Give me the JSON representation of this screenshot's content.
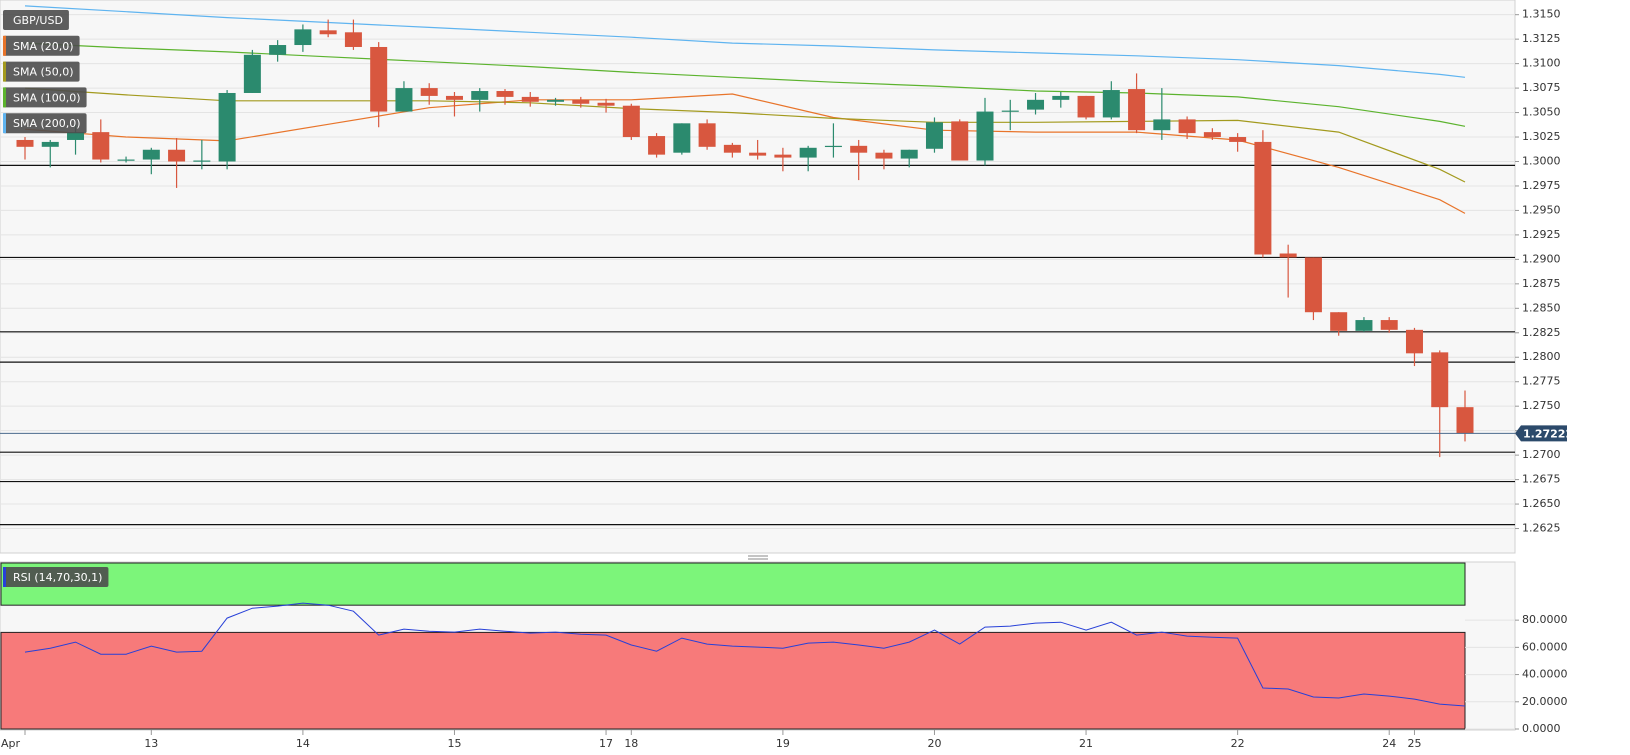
{
  "chart_data": [
    {
      "type": "candlestick",
      "title": "GBP/USD",
      "categories": [
        "Apr",
        null,
        null,
        null,
        null,
        "13",
        null,
        null,
        null,
        null,
        null,
        "14",
        null,
        null,
        null,
        null,
        null,
        "15",
        null,
        null,
        null,
        null,
        null,
        "17",
        "18",
        null,
        null,
        null,
        null,
        null,
        "19",
        null,
        null,
        null,
        null,
        null,
        "20",
        null,
        null,
        null,
        null,
        null,
        "21",
        null,
        null,
        null,
        null,
        null,
        "22",
        null,
        null,
        null,
        null,
        null,
        "24",
        "25",
        null,
        null
      ],
      "open": [
        1.3022,
        1.3015,
        1.3022,
        1.303,
        1.3002,
        1.3002,
        1.3012,
        1.3,
        1.3,
        1.307,
        1.3109,
        1.3119,
        1.3134,
        1.3132,
        1.3117,
        1.3051,
        1.3075,
        1.3067,
        1.3063,
        1.3072,
        1.3066,
        1.3061,
        1.3063,
        1.306,
        1.3057,
        1.3026,
        1.3009,
        1.3039,
        1.3017,
        1.3009,
        1.3007,
        1.3004,
        1.3015,
        1.3016,
        1.3009,
        1.3003,
        1.3013,
        1.3041,
        1.3001,
        1.3051,
        1.3053,
        1.3063,
        1.3067,
        1.3045,
        1.3074,
        1.3032,
        1.3043,
        1.303,
        1.3025,
        1.302,
        1.2906,
        1.2902,
        1.2846,
        1.2827,
        1.2838,
        1.2828,
        1.2805,
        1.2749
      ],
      "high": [
        1.3025,
        1.3022,
        1.3038,
        1.3043,
        1.3005,
        1.3014,
        1.3024,
        1.3022,
        1.3073,
        1.3114,
        1.3124,
        1.314,
        1.3145,
        1.3145,
        1.3122,
        1.3082,
        1.308,
        1.3071,
        1.3075,
        1.3074,
        1.3071,
        1.3065,
        1.3066,
        1.3064,
        1.3059,
        1.3029,
        1.3039,
        1.3043,
        1.3019,
        1.3022,
        1.3014,
        1.3016,
        1.3039,
        1.3022,
        1.3012,
        1.3012,
        1.3045,
        1.3043,
        1.3065,
        1.3063,
        1.307,
        1.3071,
        1.3067,
        1.3082,
        1.309,
        1.3075,
        1.3046,
        1.3034,
        1.3029,
        1.3032,
        1.2915,
        1.2902,
        1.2846,
        1.2841,
        1.2841,
        1.283,
        1.2807,
        1.2766
      ],
      "low": [
        1.3002,
        1.2994,
        1.3007,
        1.2999,
        1.2999,
        1.2987,
        1.2973,
        1.2992,
        1.2992,
        1.307,
        1.3102,
        1.3112,
        1.3127,
        1.3114,
        1.3035,
        1.3051,
        1.3058,
        1.3046,
        1.3051,
        1.3058,
        1.3056,
        1.3057,
        1.3055,
        1.305,
        1.3022,
        1.3004,
        1.3007,
        1.3012,
        1.3004,
        1.3002,
        1.299,
        1.299,
        1.3004,
        1.2981,
        1.2992,
        1.2994,
        1.3009,
        1.3001,
        1.2996,
        1.3032,
        1.3048,
        1.3055,
        1.3043,
        1.3043,
        1.3029,
        1.3022,
        1.3023,
        1.3022,
        1.301,
        1.2902,
        1.2861,
        1.2838,
        1.2822,
        1.2826,
        1.2825,
        1.2791,
        1.2698,
        1.2714
      ],
      "close": [
        1.3015,
        1.302,
        1.303,
        1.3002,
        1.3002,
        1.3012,
        1.3,
        1.3001,
        1.307,
        1.3109,
        1.3119,
        1.3135,
        1.313,
        1.3117,
        1.3051,
        1.3075,
        1.3067,
        1.3063,
        1.3072,
        1.3066,
        1.3061,
        1.3063,
        1.3059,
        1.3057,
        1.3025,
        1.3007,
        1.3039,
        1.3015,
        1.3009,
        1.3006,
        1.3004,
        1.3014,
        1.3016,
        1.3009,
        1.3003,
        1.3012,
        1.304,
        1.3001,
        1.3051,
        1.3052,
        1.3063,
        1.3067,
        1.3045,
        1.3073,
        1.3032,
        1.3043,
        1.3029,
        1.3025,
        1.302,
        1.2905,
        1.2902,
        1.2846,
        1.2827,
        1.2838,
        1.2828,
        1.2804,
        1.2749,
        1.2722
      ],
      "up_color": "#2b8a6e",
      "down_color": "#d8573f",
      "ylim": [
        1.26,
        1.3165
      ],
      "yticks": [
        1.2625,
        {
          "value": 1.265,
          "label": "1.2650"
        },
        1.2675,
        {
          "value": 1.27,
          "label": "1.2700"
        },
        1.2725,
        {
          "value": 1.275,
          "label": "1.2750"
        },
        1.2775,
        {
          "value": 1.28,
          "label": "1.2800"
        },
        1.2825,
        {
          "value": 1.285,
          "label": "1.2850"
        },
        1.2875,
        {
          "value": 1.29,
          "label": "1.2900"
        },
        1.2925,
        {
          "value": 1.295,
          "label": "1.2950"
        },
        1.2975,
        {
          "value": 1.3,
          "label": "1.3000"
        },
        1.3025,
        {
          "value": 1.305,
          "label": "1.3050"
        },
        1.3075,
        {
          "value": 1.31,
          "label": "1.3100"
        },
        1.3125,
        {
          "value": 1.315,
          "label": "1.3150"
        }
      ],
      "grid": true,
      "overlays": [
        {
          "name": "SMA (20,0)",
          "color": "#e8742a",
          "x": [
            0,
            4,
            8,
            12,
            16,
            20,
            24,
            28,
            32,
            36,
            40,
            44,
            48,
            52,
            56,
            57
          ],
          "values": [
            1.3033,
            1.3025,
            1.3021,
            1.3038,
            1.3055,
            1.3063,
            1.3063,
            1.3069,
            1.3045,
            1.3032,
            1.303,
            1.303,
            1.3022,
            1.2994,
            1.2961,
            1.2947
          ]
        },
        {
          "name": "SMA (50,0)",
          "color": "#a39a1e",
          "x": [
            0,
            4,
            8,
            12,
            16,
            20,
            24,
            28,
            32,
            36,
            40,
            44,
            48,
            52,
            56,
            57
          ],
          "values": [
            1.3075,
            1.3068,
            1.3062,
            1.3062,
            1.3062,
            1.306,
            1.3054,
            1.305,
            1.3044,
            1.304,
            1.304,
            1.3041,
            1.3042,
            1.303,
            1.2992,
            1.2979
          ]
        },
        {
          "name": "SMA (100,0)",
          "color": "#5cb32e",
          "x": [
            0,
            4,
            8,
            12,
            16,
            20,
            24,
            28,
            32,
            36,
            40,
            44,
            48,
            52,
            56,
            57
          ],
          "values": [
            1.3121,
            1.3116,
            1.3112,
            1.3107,
            1.3102,
            1.3097,
            1.3091,
            1.3086,
            1.3081,
            1.3077,
            1.3072,
            1.307,
            1.3066,
            1.3056,
            1.3041,
            1.3036
          ]
        },
        {
          "name": "SMA (200,0)",
          "color": "#5fb4f0",
          "x": [
            0,
            4,
            8,
            12,
            16,
            20,
            24,
            28,
            32,
            36,
            40,
            44,
            48,
            52,
            56,
            57
          ],
          "values": [
            1.3159,
            1.3153,
            1.3147,
            1.3142,
            1.3137,
            1.3132,
            1.3127,
            1.3121,
            1.3118,
            1.3114,
            1.3111,
            1.3108,
            1.3104,
            1.3098,
            1.3089,
            1.3086
          ]
        }
      ],
      "levels": [
        1.2996,
        1.2902,
        1.2826,
        1.2795,
        1.2703,
        1.2673,
        1.2629
      ],
      "last_price": 1.27222
    },
    {
      "type": "line",
      "title": "RSI (14,70,30,1)",
      "color": "#2740d8",
      "values": [
        56.5,
        59.4,
        63.9,
        55.0,
        55.0,
        60.9,
        56.5,
        57.2,
        81.5,
        88.8,
        90.3,
        92.5,
        91.0,
        86.6,
        69.0,
        73.4,
        71.9,
        71.2,
        73.4,
        71.9,
        70.5,
        71.2,
        69.7,
        69.0,
        61.7,
        57.2,
        66.8,
        62.4,
        60.9,
        60.2,
        59.4,
        63.1,
        63.9,
        61.7,
        59.4,
        63.9,
        72.7,
        62.4,
        74.9,
        75.6,
        77.8,
        78.5,
        72.7,
        78.5,
        69.0,
        71.2,
        68.3,
        67.5,
        66.8,
        30.1,
        29.4,
        23.5,
        22.8,
        25.7,
        24.2,
        22.0,
        18.3,
        16.9
      ],
      "ylim": [
        0,
        122
      ],
      "yticks": [
        {
          "value": 0,
          "label": "0.0000"
        },
        {
          "value": 20,
          "label": "20.0000"
        },
        {
          "value": 40,
          "label": "40.0000"
        },
        {
          "value": 60,
          "label": "60.0000"
        },
        {
          "value": 80,
          "label": "80.0000"
        }
      ],
      "grid": true,
      "bands": [
        {
          "from": 91,
          "to": 122,
          "color": "#7cf57a"
        },
        {
          "from": 0,
          "to": 71,
          "color": "#f77a7a"
        }
      ]
    }
  ]
}
